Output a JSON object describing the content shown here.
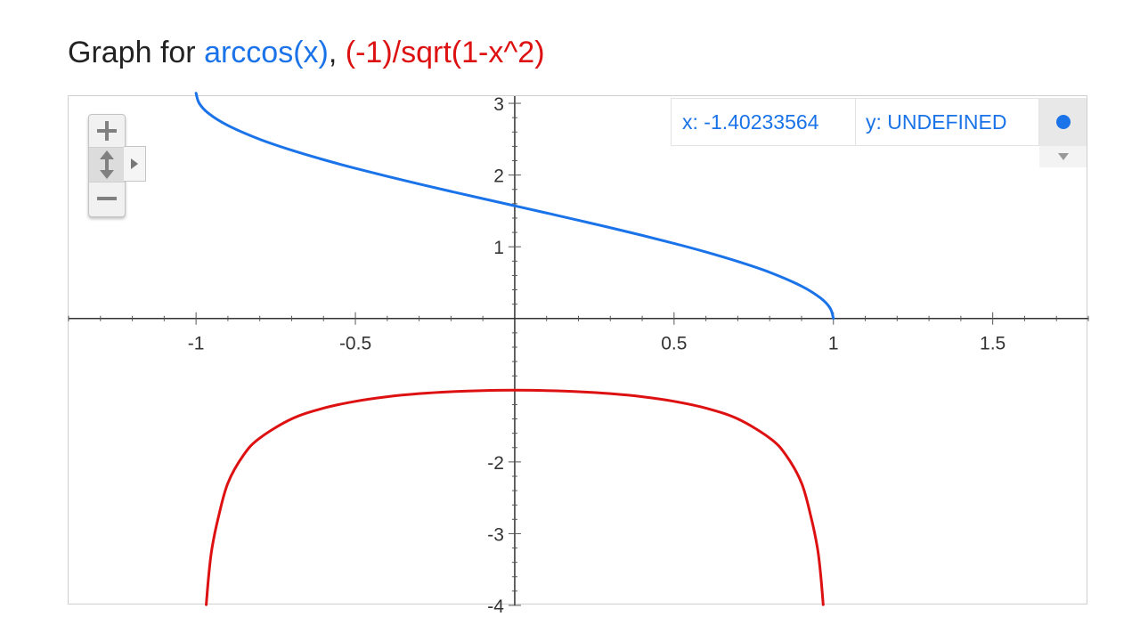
{
  "title": {
    "prefix": "Graph for ",
    "separator": ", "
  },
  "readout": {
    "x_label": "x: -1.40233564",
    "y_label": "y: UNDEFINED"
  },
  "icons": {
    "zoom_in": "plus-icon",
    "pan": "vertical-arrows-icon",
    "zoom_out": "minus-icon",
    "expand": "triangle-right-icon",
    "series_dot": "circle-dot-icon",
    "dropdown": "triangle-down-icon"
  },
  "colors": {
    "series1": "#1a73e8",
    "series2": "#dd1111"
  },
  "chart_data": {
    "type": "line",
    "title": "Graph for arccos(x), (-1)/sqrt(1-x^2)",
    "xlim": [
      -1.4,
      1.8
    ],
    "ylim": [
      -4,
      3.1
    ],
    "grid": false,
    "x_ticks": [
      {
        "value": -1,
        "label": "-1"
      },
      {
        "value": -0.5,
        "label": "-0.5"
      },
      {
        "value": 0.5,
        "label": "0.5"
      },
      {
        "value": 1,
        "label": "1"
      },
      {
        "value": 1.5,
        "label": "1.5"
      }
    ],
    "y_ticks": [
      {
        "value": 3,
        "label": "3"
      },
      {
        "value": 2,
        "label": "2"
      },
      {
        "value": 1,
        "label": "1"
      },
      {
        "value": -2,
        "label": "-2"
      },
      {
        "value": -3,
        "label": "-3"
      },
      {
        "value": -4,
        "label": "-4"
      }
    ],
    "series": [
      {
        "name": "arccos(x)",
        "color": "#1a73e8",
        "x": [
          -1,
          -0.99,
          -0.96,
          -0.9,
          -0.8,
          -0.7,
          -0.6,
          -0.5,
          -0.4,
          -0.3,
          -0.2,
          -0.1,
          0,
          0.1,
          0.2,
          0.3,
          0.4,
          0.5,
          0.6,
          0.7,
          0.8,
          0.9,
          0.96,
          0.99,
          1
        ],
        "y": [
          3.142,
          3.0,
          2.857,
          2.691,
          2.498,
          2.346,
          2.214,
          2.094,
          1.982,
          1.875,
          1.772,
          1.671,
          1.571,
          1.471,
          1.369,
          1.266,
          1.159,
          1.047,
          0.927,
          0.795,
          0.644,
          0.451,
          0.284,
          0.142,
          0
        ]
      },
      {
        "name": "(-1)/sqrt(1-x^2)",
        "color": "#dd1111",
        "x": [
          -0.968,
          -0.96,
          -0.95,
          -0.93,
          -0.9,
          -0.85,
          -0.8,
          -0.7,
          -0.6,
          -0.5,
          -0.4,
          -0.3,
          -0.2,
          -0.1,
          0,
          0.1,
          0.2,
          0.3,
          0.4,
          0.5,
          0.6,
          0.7,
          0.8,
          0.85,
          0.9,
          0.93,
          0.95,
          0.96,
          0.968
        ],
        "y": [
          -3.99,
          -3.571,
          -3.203,
          -2.773,
          -2.294,
          -1.898,
          -1.667,
          -1.4,
          -1.25,
          -1.155,
          -1.091,
          -1.048,
          -1.021,
          -1.005,
          -1.0,
          -1.005,
          -1.021,
          -1.048,
          -1.091,
          -1.155,
          -1.25,
          -1.4,
          -1.667,
          -1.898,
          -2.294,
          -2.773,
          -3.203,
          -3.571,
          -3.99
        ]
      }
    ]
  }
}
